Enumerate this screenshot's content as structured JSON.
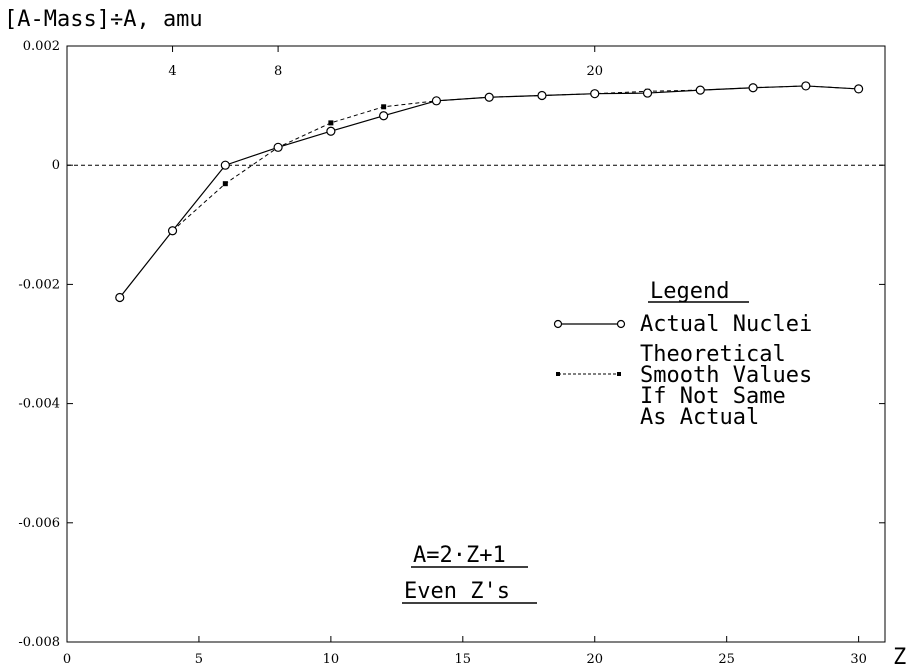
{
  "chart_data": {
    "type": "line",
    "ylabel": "[A-Mass]÷A, amu",
    "xlabel": "Z",
    "xlim": [
      0,
      31
    ],
    "ylim": [
      -0.008,
      0.002
    ],
    "x_ticks": [
      "0",
      "5",
      "10",
      "15",
      "20",
      "25",
      "30"
    ],
    "y_ticks": [
      "0.002",
      "0",
      "-0.002",
      "-0.004",
      "-0.006",
      "-0.008"
    ],
    "top_ticks": [
      "4",
      "8",
      "20"
    ],
    "zero_line": "dashed",
    "series": [
      {
        "name": "Actual Nuclei",
        "style": "solid-circle-markers",
        "x": [
          2,
          4,
          6,
          8,
          10,
          12,
          14,
          16,
          18,
          20,
          22,
          24,
          26,
          28,
          30
        ],
        "y": [
          -0.00222,
          -0.0011,
          0.0,
          0.0003,
          0.00057,
          0.00083,
          0.00108,
          0.00114,
          0.00117,
          0.0012,
          0.00121,
          0.00126,
          0.0013,
          0.00133,
          0.00128
        ]
      },
      {
        "name": "Theoretical Smooth Values If Not Same As Actual",
        "style": "dashed-square-markers",
        "x": [
          4,
          6,
          8,
          10,
          12,
          14,
          16,
          18,
          20,
          22,
          24,
          26,
          28,
          30
        ],
        "y": [
          -0.0011,
          -0.00031,
          0.0003,
          0.00071,
          0.00098,
          0.00108,
          0.00114,
          0.00117,
          0.0012,
          0.00124,
          0.00126,
          0.0013,
          0.00133,
          0.00128
        ],
        "marked_x": [
          6,
          10,
          12,
          22
        ]
      }
    ],
    "legend": {
      "title": "Legend",
      "actual_label": "Actual Nuclei",
      "theory_lines": [
        "Theoretical",
        "Smooth Values",
        "If Not Same",
        "As Actual"
      ],
      "placement": "right-middle"
    },
    "annotation": {
      "line1": "A=2·Z+1",
      "line2": "Even Z's"
    },
    "colors": {
      "ink": "#000000",
      "background": "#ffffff"
    }
  }
}
